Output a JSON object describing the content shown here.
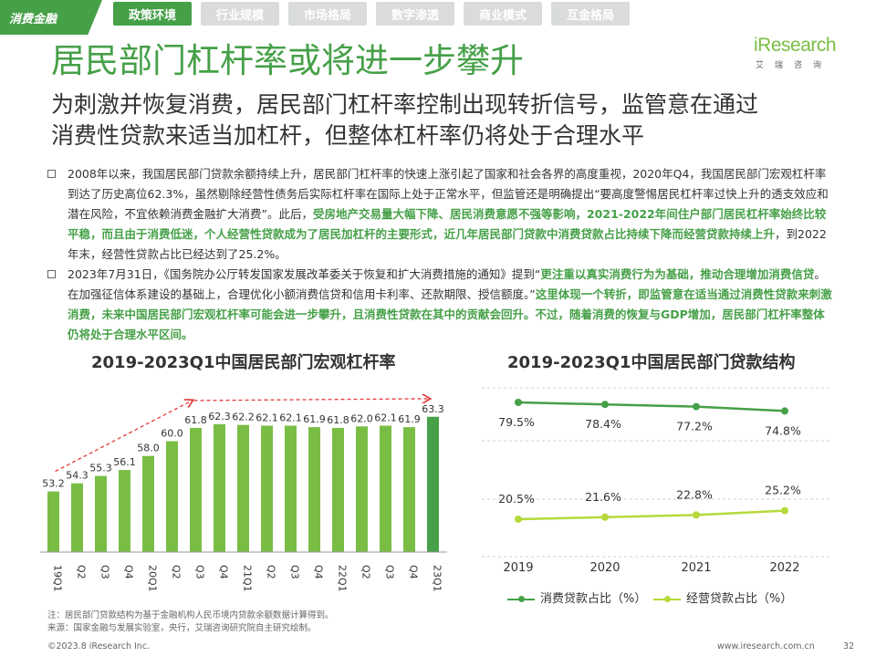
{
  "nav": {
    "brand": "消费金融",
    "tabs": [
      {
        "label": "政策环境",
        "active": true
      },
      {
        "label": "行业规模",
        "active": false
      },
      {
        "label": "市场格局",
        "active": false
      },
      {
        "label": "数字渗透",
        "active": false
      },
      {
        "label": "商业模式",
        "active": false
      },
      {
        "label": "互金格局",
        "active": false
      }
    ]
  },
  "logo": {
    "name": "iResearch",
    "cn": "艾瑞咨询"
  },
  "header": {
    "title": "居民部门杠杆率或将进一步攀升",
    "subtitle_line1": "为刺激并恢复消费，居民部门杠杆率控制出现转折信号，监管意在通过",
    "subtitle_line2": "消费性贷款来适当加杠杆，但整体杠杆率仍将处于合理水平"
  },
  "paragraphs": [
    {
      "segments": [
        {
          "text": "2008年以来，我国居民部门贷款余额持续上升，居民部门杠杆率的快速上涨引起了国家和社会各界的高度重视，2020年Q4，我国居民部门宏观杠杆率到达了历史高位62.3%，虽然剔除经营性债务后实际杠杆率在国际上处于正常水平，但监管还是明确提出“要高度警惕居民杠杆率过快上升的透支效应和潜在风险，不宜依赖消费金融扩大消费”。此后，",
          "bold": false
        },
        {
          "text": "受房地产交易量大幅下降、居民消费意愿不强等影响，2021-2022年间住户部门居民杠杆率始终比较平稳，而且由于消费低迷，个人经营性贷款成为了居民加杠杆的主要形式，近几年居民部门贷款中消费贷款占比持续下降而经营贷款持续上升",
          "bold": true
        },
        {
          "text": "，到2022年末，经营性贷款占比已经达到了25.2%。",
          "bold": false
        }
      ]
    },
    {
      "segments": [
        {
          "text": "2023年7月31日，《国务院办公厅转发国家发展改革委关于恢复和扩大消费措施的通知》提到“",
          "bold": false
        },
        {
          "text": "更注重以真实消费行为为基础，推动合理增加消费信贷",
          "bold": true
        },
        {
          "text": "。在加强征信体系建设的基础上，合理优化小额消费信贷和信用卡利率、还款期限、授信额度。”",
          "bold": false
        },
        {
          "text": "这里体现一个转折，即监管意在适当通过消费性贷款来刺激消费，未来中国居民部门宏观杠杆率可能会进一步攀升，且消费性贷款在其中的贡献会回升。不过，随着消费的恢复与GDP增加，居民部门杠杆率整体仍将处于合理水平区间。",
          "bold": true
        }
      ]
    }
  ],
  "chart_data": [
    {
      "type": "bar",
      "title": "2019-2023Q1中国居民部门宏观杠杆率",
      "categories": [
        "19Q1",
        "Q2",
        "Q3",
        "Q4",
        "20Q1",
        "Q2",
        "Q3",
        "Q4",
        "21Q1",
        "Q2",
        "Q3",
        "Q4",
        "22Q1",
        "Q2",
        "Q3",
        "Q4",
        "23Q1"
      ],
      "values": [
        53.2,
        54.3,
        55.3,
        56.1,
        58.0,
        60.0,
        61.8,
        62.3,
        62.2,
        62.1,
        62.1,
        61.9,
        61.8,
        62.0,
        62.1,
        61.9,
        63.3
      ],
      "value_labels": [
        "53.2",
        "54.3",
        "55.3",
        "56.1",
        "58.0",
        "60.0",
        "61.8",
        "62.3",
        "62.2",
        "62.1",
        "62.1",
        "61.9",
        "61.8",
        "62.0",
        "62.1",
        "61.9",
        "63.3"
      ],
      "ylim": [
        45,
        65
      ],
      "bar_color": "#7abd45",
      "last_bar_color": "#46a048",
      "annotation": "red dashed trend arrows"
    },
    {
      "type": "line",
      "title": "2019-2023Q1中国居民部门贷款结构",
      "x": [
        "2019",
        "2020",
        "2021",
        "2022"
      ],
      "series": [
        {
          "name": "消费贷款占比（%）",
          "values": [
            79.5,
            78.4,
            77.2,
            74.8
          ],
          "labels": [
            "79.5%",
            "78.4%",
            "77.2%",
            "74.8%"
          ],
          "color": "#46a048"
        },
        {
          "name": "经营贷款占比（%）",
          "values": [
            20.5,
            21.6,
            22.8,
            25.2
          ],
          "labels": [
            "20.5%",
            "21.6%",
            "22.8%",
            "25.2%"
          ],
          "color": "#b5d93a"
        }
      ],
      "ylim": [
        0,
        100
      ],
      "grid": true
    }
  ],
  "notes": {
    "note": "注：居民部门贷款结构为基于金融机构人民币境内贷款余额数据计算得到。",
    "source": "来源：国家金融与发展实验室，央行，艾瑞咨询研究院自主研究绘制。"
  },
  "footer": {
    "copyright": "©2023.8 iResearch Inc.",
    "url": "www.iresearch.com.cn",
    "page": "32"
  },
  "colors": {
    "primary": "#46a048",
    "light": "#7abd45",
    "lime": "#b5d93a",
    "arrow": "#e23b3b"
  }
}
